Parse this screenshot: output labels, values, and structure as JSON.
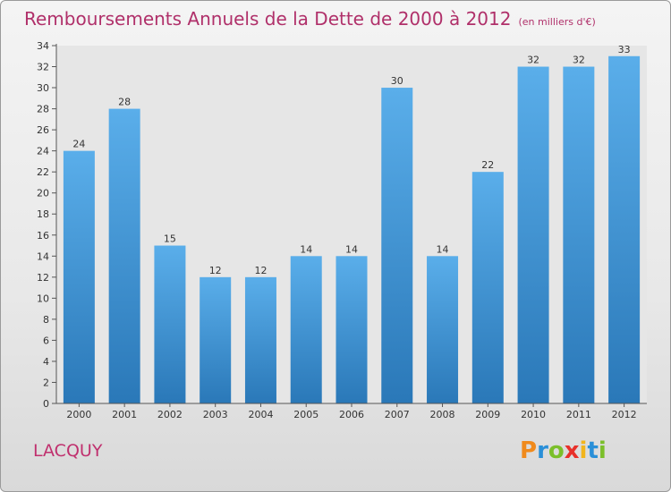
{
  "title": "Remboursements Annuels de la Dette de 2000 à 2012",
  "unit_note": "(en milliers d'€)",
  "commune": "LACQUY",
  "logo": {
    "letters": [
      "P",
      "r",
      "o",
      "x",
      "i",
      "t",
      "i"
    ],
    "colors": [
      "#f08a1c",
      "#2a8fd8",
      "#7bbf2a",
      "#e8302a",
      "#f2b51c",
      "#2a8fd8",
      "#7bbf2a"
    ]
  },
  "colors": {
    "title": "#b0306a",
    "bar_top": "#5aaeea",
    "bar_bottom": "#2a78b8"
  },
  "chart_data": {
    "type": "bar",
    "categories": [
      "2000",
      "2001",
      "2002",
      "2003",
      "2004",
      "2005",
      "2006",
      "2007",
      "2008",
      "2009",
      "2010",
      "2011",
      "2012"
    ],
    "values": [
      24,
      28,
      15,
      12,
      12,
      14,
      14,
      30,
      14,
      22,
      32,
      32,
      33
    ],
    "ylim": [
      0,
      34
    ],
    "yticks": [
      0,
      2,
      4,
      6,
      8,
      10,
      12,
      14,
      16,
      18,
      20,
      22,
      24,
      26,
      28,
      30,
      32,
      34
    ],
    "grid": false,
    "data_labels": true
  }
}
